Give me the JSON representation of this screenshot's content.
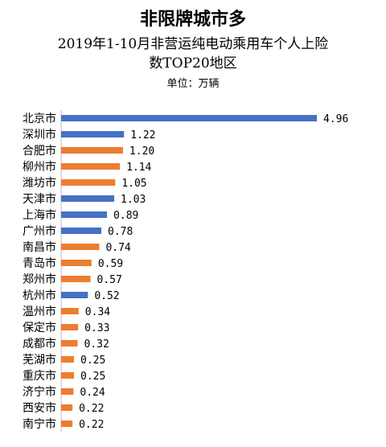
{
  "title": {
    "line1": "非限牌城市多",
    "line2": "2019年1-10月非营运纯电动乘用车个人上险",
    "line3": "数TOP20地区",
    "unit": "单位：万辆"
  },
  "colors": {
    "blue": "#4472C4",
    "orange": "#ED7D31"
  },
  "chart_data": {
    "type": "bar",
    "orientation": "horizontal",
    "categories": [
      "北京市",
      "深圳市",
      "合肥市",
      "柳州市",
      "潍坊市",
      "天津市",
      "上海市",
      "广州市",
      "南昌市",
      "青岛市",
      "郑州市",
      "杭州市",
      "温州市",
      "保定市",
      "成都市",
      "芜湖市",
      "重庆市",
      "济宁市",
      "西安市",
      "南宁市"
    ],
    "values": [
      4.96,
      1.22,
      1.2,
      1.14,
      1.05,
      1.03,
      0.89,
      0.78,
      0.74,
      0.59,
      0.57,
      0.52,
      0.34,
      0.33,
      0.32,
      0.25,
      0.25,
      0.24,
      0.22,
      0.22
    ],
    "labels": [
      "4.96",
      "1.22",
      "1.20",
      "1.14",
      "1.05",
      "1.03",
      "0.89",
      "0.78",
      "0.74",
      "0.59",
      "0.57",
      "0.52",
      "0.34",
      "0.33",
      "0.32",
      "0.25",
      "0.25",
      "0.24",
      "0.22",
      "0.22"
    ],
    "bar_colors": [
      "blue",
      "blue",
      "orange",
      "orange",
      "orange",
      "blue",
      "blue",
      "blue",
      "orange",
      "orange",
      "orange",
      "blue",
      "orange",
      "orange",
      "orange",
      "orange",
      "orange",
      "orange",
      "orange",
      "orange"
    ],
    "xlim": [
      0,
      5
    ],
    "grid": false,
    "legend": false
  }
}
